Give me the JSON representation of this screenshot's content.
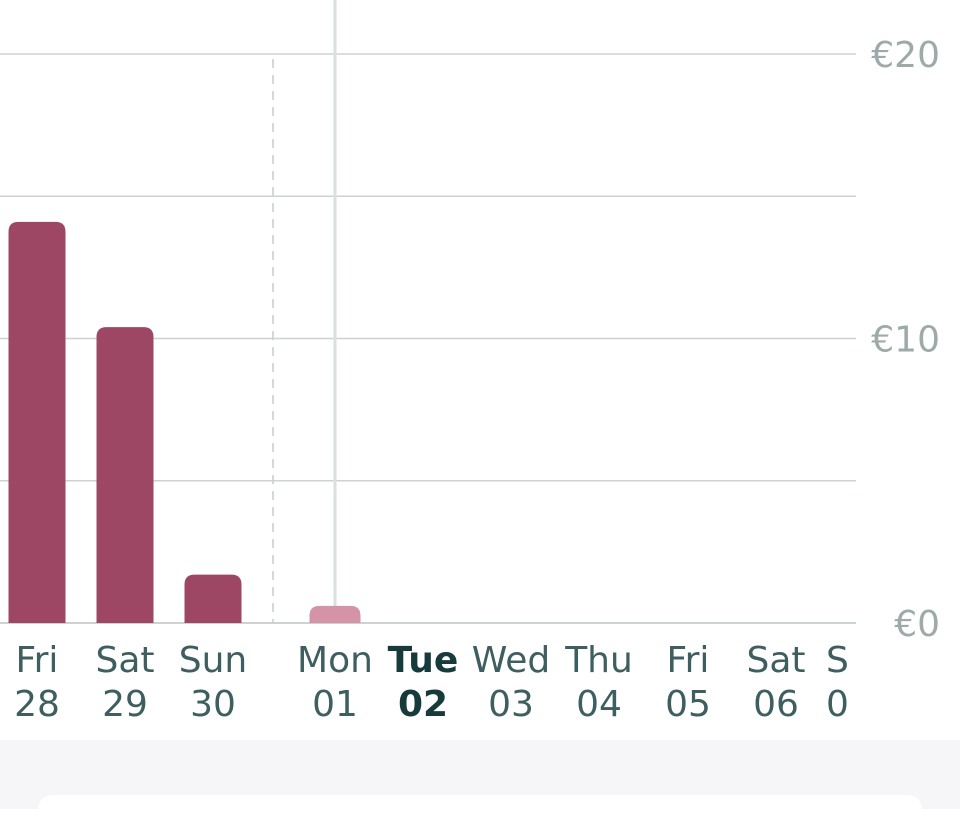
{
  "chart_data": {
    "type": "bar",
    "currency": "€",
    "ylim": [
      0,
      20
    ],
    "yticks": [
      {
        "value": 20,
        "label": "€20"
      },
      {
        "value": 10,
        "label": "€10"
      },
      {
        "value": 0,
        "label": "€0"
      }
    ],
    "grid_values": [
      20,
      15,
      10,
      5,
      0
    ],
    "categories": [
      {
        "day": "Fri",
        "date": "28",
        "value": 14.1,
        "kind": "past"
      },
      {
        "day": "Sat",
        "date": "29",
        "value": 10.4,
        "kind": "past"
      },
      {
        "day": "Sun",
        "date": "30",
        "value": 1.7,
        "kind": "past"
      },
      {
        "day": "Mon",
        "date": "01",
        "value": 0.6,
        "kind": "projected"
      },
      {
        "day": "Tue",
        "date": "02",
        "value": 0,
        "kind": "current"
      },
      {
        "day": "Wed",
        "date": "03",
        "value": 0,
        "kind": "future"
      },
      {
        "day": "Thu",
        "date": "04",
        "value": 0,
        "kind": "future"
      },
      {
        "day": "Fri",
        "date": "05",
        "value": 0,
        "kind": "future"
      },
      {
        "day": "Sat",
        "date": "06",
        "value": 0,
        "kind": "future"
      },
      {
        "day": "S",
        "date": "0",
        "value": 0,
        "kind": "future"
      }
    ],
    "period_divider_after_index": 2,
    "highlight_index": 3,
    "colors": {
      "bar": "#9e4765",
      "bar_light": "#d493a7",
      "grid": "#cdd3d3",
      "divider": "#c8cfcf",
      "highlight_line": "#dadfdf",
      "axis_text": "#9eaaa9",
      "label_text": "#3f5e5f",
      "label_current": "#173a3a"
    },
    "legend": "none",
    "grid": true
  }
}
